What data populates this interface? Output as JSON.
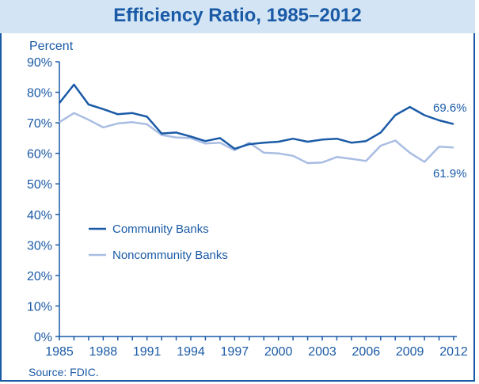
{
  "chart_data": {
    "type": "line",
    "title": "Efficiency Ratio, 1985–2012",
    "ylabel": "Percent",
    "xlabel": "",
    "ylim": [
      0,
      90
    ],
    "yticks": [
      "0%",
      "10%",
      "20%",
      "30%",
      "40%",
      "50%",
      "60%",
      "70%",
      "80%",
      "90%"
    ],
    "xlim": [
      1985,
      2012
    ],
    "xticks": [
      "1985",
      "1988",
      "1991",
      "1994",
      "1997",
      "2000",
      "2003",
      "2006",
      "2009",
      "2012"
    ],
    "x": [
      1985,
      1986,
      1987,
      1988,
      1989,
      1990,
      1991,
      1992,
      1993,
      1994,
      1995,
      1996,
      1997,
      1998,
      1999,
      2000,
      2001,
      2002,
      2003,
      2004,
      2005,
      2006,
      2007,
      2008,
      2009,
      2010,
      2011,
      2012
    ],
    "series": [
      {
        "name": "Community Banks",
        "color": "#1a5aa6",
        "values": [
          76.5,
          82.5,
          76.0,
          74.5,
          72.8,
          73.2,
          72.0,
          66.5,
          66.8,
          65.5,
          64.0,
          65.0,
          61.5,
          63.0,
          63.5,
          63.8,
          64.8,
          63.8,
          64.5,
          64.8,
          63.5,
          64.0,
          66.8,
          72.5,
          75.2,
          72.5,
          70.8,
          69.6
        ]
      },
      {
        "name": "Noncommunity Banks",
        "color": "#a9bde3",
        "values": [
          70.2,
          73.2,
          71.0,
          68.5,
          69.8,
          70.2,
          69.5,
          66.0,
          65.2,
          65.0,
          63.2,
          63.5,
          61.0,
          63.5,
          60.2,
          60.0,
          59.2,
          56.8,
          57.0,
          58.8,
          58.2,
          57.5,
          62.5,
          64.2,
          60.2,
          57.2,
          62.2,
          61.9
        ]
      }
    ],
    "annotations": [
      "69.6%",
      "61.9%"
    ],
    "legend": "center-left",
    "grid": false,
    "source": "Source: FDIC."
  }
}
